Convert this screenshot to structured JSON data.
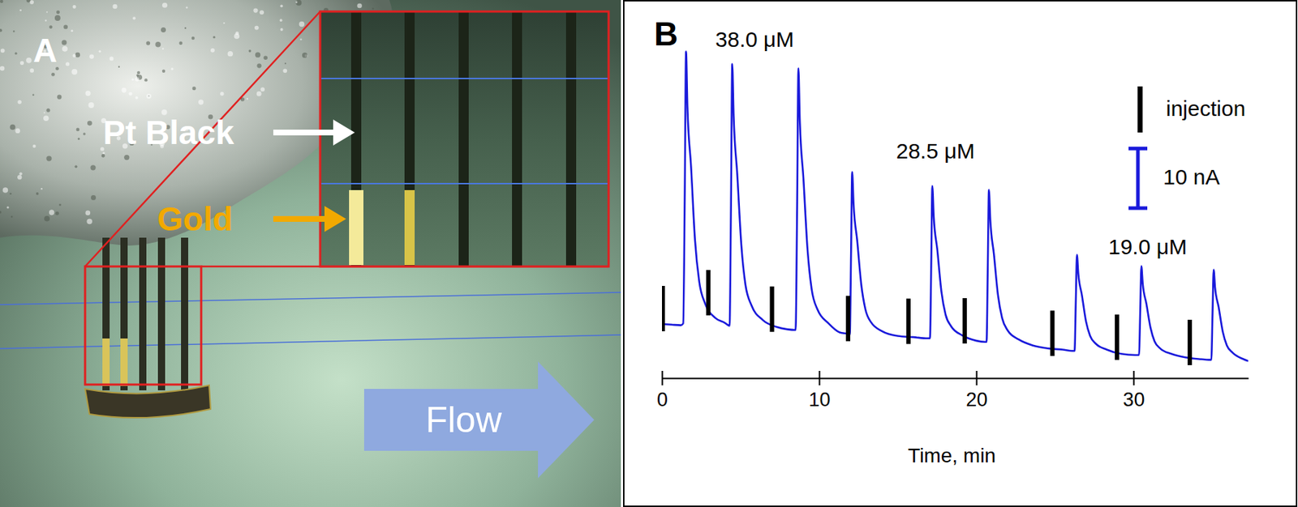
{
  "panel_a": {
    "label": "A",
    "annotations": [
      "Pt Black",
      "Gold"
    ],
    "flow": "Flow"
  },
  "chart_data": {
    "type": "line",
    "panel_label": "B",
    "xlabel": "Time, min",
    "color": "#1a1adb",
    "x": [
      0,
      0.6,
      1.2,
      1.35,
      1.45,
      1.53,
      1.62,
      1.85,
      2.1,
      2.37,
      2.75,
      3.4,
      4.0,
      4.3,
      4.39,
      4.47,
      4.56,
      4.79,
      5.05,
      5.31,
      5.7,
      6.4,
      7.3,
      8.0,
      8.5,
      8.6,
      8.68,
      8.77,
      9.0,
      9.26,
      9.52,
      9.9,
      10.6,
      11.3,
      11.9,
      11.95,
      12.03,
      12.1,
      12.19,
      12.42,
      12.68,
      12.94,
      13.3,
      14.0,
      15.0,
      16.0,
      16.9,
      17.05,
      17.13,
      17.2,
      17.29,
      17.52,
      17.78,
      18.04,
      18.4,
      19.1,
      20.0,
      20.55,
      20.65,
      20.73,
      20.8,
      20.89,
      21.12,
      21.38,
      21.64,
      22.0,
      22.7,
      23.6,
      24.6,
      25.5,
      26.1,
      26.25,
      26.33,
      26.4,
      26.49,
      26.72,
      26.98,
      27.24,
      27.6,
      28.3,
      29.2,
      30.1,
      30.35,
      30.43,
      30.5,
      30.59,
      30.82,
      31.08,
      31.34,
      31.7,
      32.4,
      33.3,
      34.3,
      34.8,
      34.95,
      35.03,
      35.1,
      35.19,
      35.42,
      35.68,
      35.94,
      36.3,
      37.0,
      37.3
    ],
    "values": [
      8.1,
      8.0,
      7.9,
      8.2,
      30,
      53.8,
      44.5,
      34.5,
      22.2,
      15.2,
      11.5,
      9.1,
      8.3,
      7.8,
      28,
      51.7,
      43.0,
      33.2,
      21.3,
      14.7,
      11.2,
      8.8,
      7.6,
      7.2,
      7.1,
      28,
      51.0,
      42.2,
      32.5,
      20.6,
      14.0,
      10.5,
      8.2,
      6.7,
      6.4,
      6.3,
      20,
      33.6,
      28.2,
      22.1,
      14.7,
      10.6,
      8.4,
      6.9,
      6.1,
      5.9,
      5.7,
      5.7,
      18,
      31.25,
      26.1,
      20.5,
      13.5,
      9.7,
      7.7,
      6.2,
      5.3,
      5.1,
      5.1,
      18,
      30.6,
      25.5,
      19.8,
      12.9,
      9.1,
      7.0,
      5.5,
      4.5,
      4.0,
      3.8,
      3.6,
      3.6,
      12,
      19.7,
      16.5,
      12.9,
      8.5,
      6.1,
      4.8,
      3.8,
      3.1,
      2.9,
      2.9,
      10.5,
      17.8,
      14.8,
      11.5,
      7.5,
      5.2,
      4.0,
      3.1,
      2.5,
      2.2,
      2.1,
      2.1,
      10,
      17.2,
      14.2,
      10.9,
      6.8,
      4.5,
      3.3,
      2.2,
      1.9
    ],
    "xlim": [
      0,
      37.3
    ],
    "xticks": [
      0,
      10,
      20,
      30
    ],
    "ylim": [
      0,
      57
    ],
    "tick_labels": "x",
    "annotations": [
      {
        "text": "38.0 μM",
        "x": 5.9,
        "y": 55.5
      },
      {
        "text": "28.5 μM",
        "x": 17.4,
        "y": 36.8
      },
      {
        "text": "19.0 μM",
        "x": 30.9,
        "y": 20.8
      }
    ],
    "injections": {
      "label": "injection",
      "x": [
        0.05,
        2.95,
        7.0,
        11.84,
        15.68,
        19.26,
        24.84,
        28.95,
        33.58
      ]
    },
    "scale_bar": {
      "value": 10,
      "label": "10 nA",
      "color": "#1a1adb"
    }
  }
}
